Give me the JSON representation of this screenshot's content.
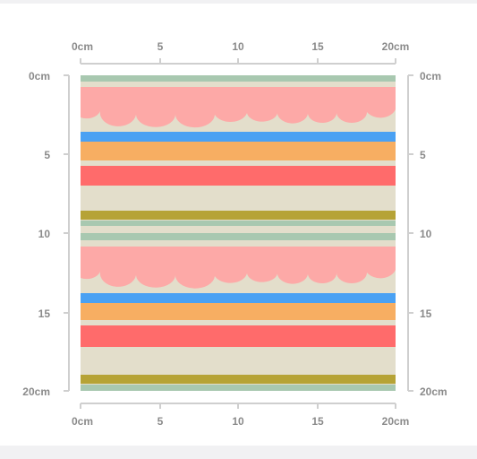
{
  "ruler": {
    "top_labels": [
      "0cm",
      "5",
      "10",
      "15",
      "20cm"
    ],
    "bottom_labels": [
      "0cm",
      "5",
      "10",
      "15",
      "20cm"
    ],
    "left_labels": [
      "0cm",
      "5",
      "10",
      "15",
      "20cm"
    ],
    "right_labels": [
      "0cm",
      "5",
      "10",
      "15",
      "20cm"
    ]
  },
  "pattern": {
    "colors": {
      "background": "#e3decb",
      "sage": "#a8c8b0",
      "pink": "#fda9a7",
      "blue": "#4aa1f3",
      "orange": "#f7ae62",
      "red": "#ff6b6b",
      "olive": "#b6a336",
      "axis": "#cfcfcf"
    }
  }
}
